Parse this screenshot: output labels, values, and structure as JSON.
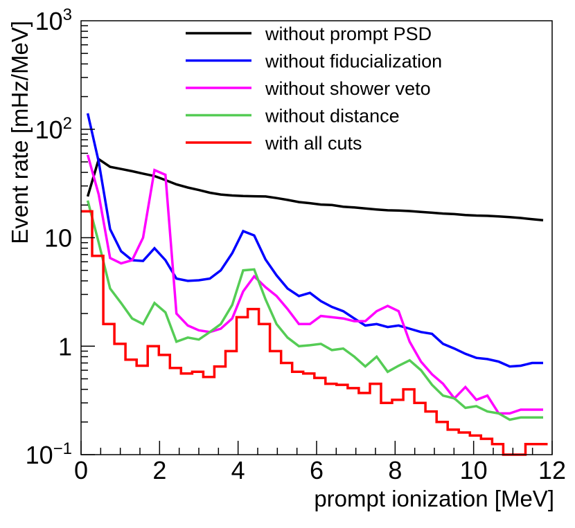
{
  "chart_data": {
    "type": "line",
    "xlabel": "prompt ionization [MeV]",
    "ylabel": "Event rate [mHz/MeV]",
    "xlim": [
      0,
      12
    ],
    "ylim": [
      0.1,
      1000
    ],
    "yscale": "log",
    "grid": false,
    "legend_position": "top-right",
    "x_ticks": [
      0,
      2,
      4,
      6,
      8,
      10,
      12
    ],
    "x_tick_labels": [
      "0",
      "2",
      "4",
      "6",
      "8",
      "10",
      "12"
    ],
    "y_ticks": [
      {
        "value": 1000,
        "base": "10",
        "exp": "3"
      },
      {
        "value": 100,
        "base": "10",
        "exp": "2"
      },
      {
        "value": 10,
        "base": "10",
        "exp": ""
      },
      {
        "value": 1,
        "base": "1",
        "exp": ""
      },
      {
        "value": 0.1,
        "base": "10",
        "exp": "−1"
      }
    ],
    "series": [
      {
        "name": "without prompt PSD",
        "color": "#000000",
        "style": "line",
        "x": [
          0.17,
          0.45,
          0.74,
          1.02,
          1.3,
          1.58,
          1.87,
          2.15,
          2.43,
          2.72,
          3.0,
          3.28,
          3.56,
          3.85,
          4.13,
          4.41,
          4.7,
          4.98,
          5.26,
          5.55,
          5.83,
          6.11,
          6.39,
          6.68,
          6.96,
          7.24,
          7.53,
          7.81,
          8.09,
          8.37,
          8.66,
          8.94,
          9.22,
          9.51,
          9.79,
          10.07,
          10.35,
          10.64,
          10.92,
          11.2,
          11.49,
          11.77
        ],
        "values": [
          24,
          53,
          45,
          43,
          41,
          39,
          37,
          34,
          31,
          29,
          27.5,
          26,
          25,
          24.5,
          24.2,
          24.1,
          24,
          23.2,
          22.3,
          21.3,
          20.8,
          20.2,
          20,
          19.3,
          19,
          18.6,
          18.2,
          17.9,
          17.8,
          17.6,
          17.3,
          17,
          16.7,
          16.5,
          16.2,
          16,
          15.9,
          15.7,
          15.5,
          15.2,
          14.8,
          14.5
        ]
      },
      {
        "name": "without fiducialization",
        "color": "#0000ff",
        "style": "line",
        "x": [
          0.17,
          0.45,
          0.74,
          1.02,
          1.3,
          1.58,
          1.87,
          2.15,
          2.43,
          2.72,
          3.0,
          3.28,
          3.56,
          3.85,
          4.13,
          4.41,
          4.7,
          4.98,
          5.26,
          5.55,
          5.83,
          6.11,
          6.39,
          6.68,
          6.96,
          7.24,
          7.53,
          7.81,
          8.09,
          8.37,
          8.66,
          8.94,
          9.22,
          9.51,
          9.79,
          10.07,
          10.35,
          10.64,
          10.92,
          11.2,
          11.49,
          11.77
        ],
        "values": [
          140,
          50,
          12,
          7.5,
          6.2,
          6.1,
          8,
          6.2,
          4.2,
          4,
          4.05,
          4.2,
          5,
          7.2,
          11.5,
          10.5,
          6.3,
          4.5,
          3.4,
          2.9,
          3.1,
          2.6,
          2.3,
          2.1,
          1.8,
          1.55,
          1.6,
          1.5,
          1.55,
          1.45,
          1.35,
          1.3,
          1.05,
          0.95,
          0.85,
          0.78,
          0.76,
          0.72,
          0.65,
          0.66,
          0.7,
          0.7
        ]
      },
      {
        "name": "without shower veto",
        "color": "#ff00ff",
        "style": "line",
        "x": [
          0.17,
          0.45,
          0.74,
          1.02,
          1.3,
          1.58,
          1.87,
          2.15,
          2.43,
          2.72,
          3.0,
          3.28,
          3.56,
          3.85,
          4.13,
          4.41,
          4.7,
          4.98,
          5.26,
          5.55,
          5.83,
          6.11,
          6.39,
          6.68,
          6.96,
          7.24,
          7.53,
          7.81,
          8.09,
          8.37,
          8.66,
          8.94,
          9.22,
          9.51,
          9.79,
          10.07,
          10.35,
          10.64,
          10.92,
          11.2,
          11.49,
          11.77
        ],
        "values": [
          58,
          25,
          6.5,
          5.8,
          6.2,
          10,
          42,
          38,
          2,
          1.55,
          1.4,
          1.35,
          1.45,
          1.8,
          3.2,
          4.4,
          3.5,
          2.9,
          2.2,
          1.6,
          1.6,
          1.9,
          1.85,
          1.8,
          1.7,
          1.7,
          2.1,
          2.35,
          2.1,
          1.1,
          0.72,
          0.55,
          0.45,
          0.33,
          0.42,
          0.32,
          0.35,
          0.24,
          0.24,
          0.26,
          0.26,
          0.26
        ]
      },
      {
        "name": "without distance",
        "color": "#55cc55",
        "style": "line",
        "x": [
          0.17,
          0.45,
          0.74,
          1.02,
          1.3,
          1.58,
          1.87,
          2.15,
          2.43,
          2.72,
          3.0,
          3.28,
          3.56,
          3.85,
          4.13,
          4.41,
          4.7,
          4.98,
          5.26,
          5.55,
          5.83,
          6.11,
          6.39,
          6.68,
          6.96,
          7.24,
          7.53,
          7.81,
          8.09,
          8.37,
          8.66,
          8.94,
          9.22,
          9.51,
          9.79,
          10.07,
          10.35,
          10.64,
          10.92,
          11.2,
          11.49,
          11.77
        ],
        "values": [
          22,
          9,
          3.4,
          2.5,
          1.8,
          1.6,
          2.5,
          2.05,
          1.1,
          1.2,
          1.15,
          1.35,
          1.6,
          2.4,
          5,
          5.1,
          2.7,
          1.6,
          1.2,
          1,
          1.02,
          1.05,
          0.92,
          0.95,
          0.8,
          0.65,
          0.8,
          0.58,
          0.66,
          0.74,
          0.6,
          0.44,
          0.35,
          0.33,
          0.27,
          0.28,
          0.25,
          0.24,
          0.21,
          0.22,
          0.22,
          0.22
        ]
      },
      {
        "name": "with all cuts",
        "color": "#ff0000",
        "style": "step",
        "edges": [
          0.0,
          0.283,
          0.566,
          0.849,
          1.132,
          1.415,
          1.698,
          1.981,
          2.264,
          2.547,
          2.83,
          3.113,
          3.396,
          3.679,
          3.962,
          4.245,
          4.528,
          4.811,
          5.094,
          5.377,
          5.66,
          5.943,
          6.226,
          6.509,
          6.792,
          7.075,
          7.358,
          7.641,
          7.924,
          8.207,
          8.49,
          8.773,
          9.056,
          9.339,
          9.622,
          9.905,
          10.188,
          10.471,
          10.754,
          11.037,
          11.32,
          11.603,
          11.886
        ],
        "values": [
          17.5,
          6.8,
          1.6,
          1.05,
          0.75,
          0.66,
          1.0,
          0.83,
          0.63,
          0.56,
          0.58,
          0.52,
          0.65,
          0.9,
          1.85,
          2.2,
          1.6,
          0.9,
          0.7,
          0.58,
          0.56,
          0.51,
          0.45,
          0.44,
          0.41,
          0.37,
          0.45,
          0.3,
          0.32,
          0.4,
          0.3,
          0.25,
          0.2,
          0.17,
          0.16,
          0.15,
          0.14,
          0.125,
          0.1,
          0.1,
          0.125,
          0.125
        ]
      }
    ]
  }
}
